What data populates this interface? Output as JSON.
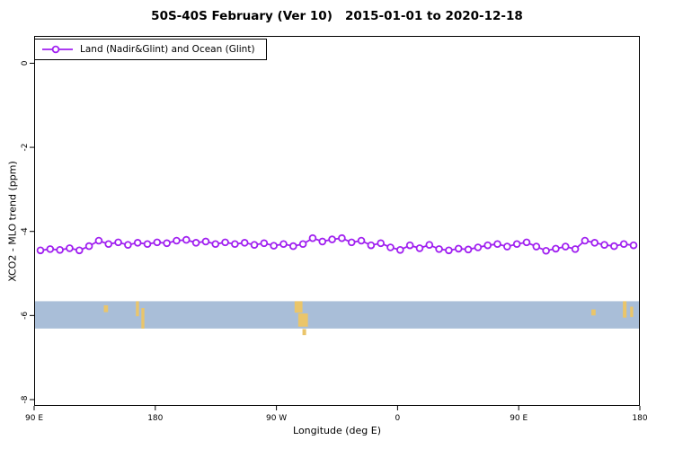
{
  "chart_data": {
    "type": "line",
    "title": "50S-40S February (Ver 10)   2015-01-01 to 2020-12-18",
    "xlabel": "Longitude (deg E)",
    "ylabel": "XCO2 - MLO trend (ppm)",
    "legend": "Land (Nadir&Glint) and Ocean (Glint)",
    "series_name": "Land (Nadir&Glint) and Ocean (Glint)",
    "series_color": "#A020F0",
    "marker": "open-circle",
    "x_ticks": [
      "90 E",
      "180",
      "90 W",
      "0",
      "90 E",
      "180"
    ],
    "y_ticks": [
      0,
      -2,
      -4,
      -6,
      -8
    ],
    "ylim": [
      -8.15,
      0.65
    ],
    "grid": false,
    "legend_position": "top-left",
    "values": [
      -4.45,
      -4.42,
      -4.44,
      -4.4,
      -4.45,
      -4.35,
      -4.22,
      -4.3,
      -4.26,
      -4.32,
      -4.27,
      -4.3,
      -4.26,
      -4.28,
      -4.22,
      -4.2,
      -4.27,
      -4.24,
      -4.3,
      -4.26,
      -4.3,
      -4.27,
      -4.32,
      -4.28,
      -4.34,
      -4.3,
      -4.35,
      -4.3,
      -4.16,
      -4.24,
      -4.19,
      -4.16,
      -4.26,
      -4.22,
      -4.33,
      -4.28,
      -4.38,
      -4.44,
      -4.33,
      -4.4,
      -4.32,
      -4.42,
      -4.45,
      -4.41,
      -4.43,
      -4.38,
      -4.33,
      -4.3,
      -4.36,
      -4.3,
      -4.26,
      -4.36,
      -4.46,
      -4.41,
      -4.36,
      -4.42,
      -4.22,
      -4.27,
      -4.32,
      -4.35,
      -4.3,
      -4.33
    ],
    "map_band": {
      "description": "latitude-band map strip 50S-40S: ocean with small land patches",
      "y_top": -5.66,
      "y_bottom": -6.31,
      "ocean_color": "#a9bed8",
      "land_color": "#eac56a",
      "patches": [
        {
          "x": 0.115,
          "y": 0.15,
          "w": 0.007,
          "h": 0.25
        },
        {
          "x": 0.168,
          "y": 0.0,
          "w": 0.005,
          "h": 0.55
        },
        {
          "x": 0.177,
          "y": 0.25,
          "w": 0.005,
          "h": 0.75
        },
        {
          "x": 0.43,
          "y": 0.0,
          "w": 0.013,
          "h": 0.42
        },
        {
          "x": 0.436,
          "y": 0.45,
          "w": 0.016,
          "h": 0.48
        },
        {
          "x": 0.443,
          "y": 1.02,
          "w": 0.006,
          "h": 0.22
        },
        {
          "x": 0.92,
          "y": 0.3,
          "w": 0.007,
          "h": 0.22
        },
        {
          "x": 0.972,
          "y": 0.0,
          "w": 0.006,
          "h": 0.6
        },
        {
          "x": 0.984,
          "y": 0.2,
          "w": 0.005,
          "h": 0.38
        }
      ]
    }
  }
}
